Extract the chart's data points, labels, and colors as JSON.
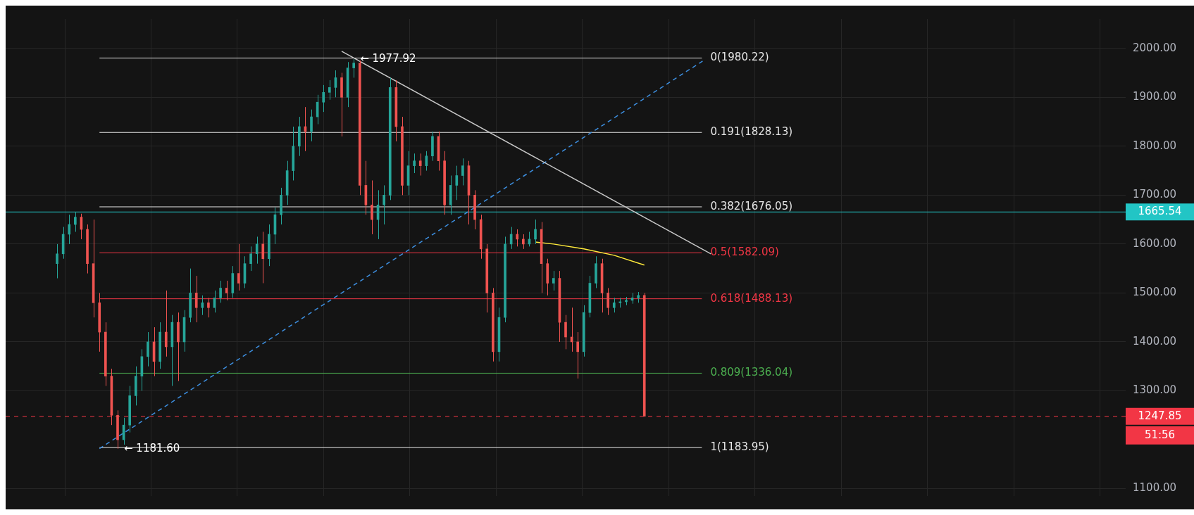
{
  "chart_data": {
    "type": "candlestick",
    "categories": [
      null,
      null,
      null,
      null,
      null,
      null,
      null,
      null,
      null,
      null,
      null,
      null,
      null,
      null,
      null,
      null,
      null,
      null,
      null,
      null,
      null,
      null,
      null,
      null,
      null,
      null,
      null,
      null,
      null,
      null,
      null,
      null,
      null,
      null,
      null,
      null,
      null,
      null,
      null,
      null,
      null,
      null,
      null,
      null,
      null,
      null,
      null,
      null,
      null,
      null,
      null,
      null,
      null,
      null,
      null,
      null,
      null,
      null,
      null,
      null,
      null,
      null,
      null,
      null,
      null,
      null,
      null,
      null,
      null,
      null,
      null,
      null,
      null,
      null,
      null,
      null,
      null,
      null,
      null,
      null,
      null,
      null,
      null,
      null,
      null,
      null,
      null,
      null,
      null,
      null,
      null,
      null,
      null,
      null,
      null,
      null,
      null,
      null,
      null,
      null,
      null,
      null,
      null,
      null,
      null,
      null,
      null,
      null,
      null,
      null,
      null,
      null,
      null,
      null,
      null,
      null,
      null,
      null,
      null,
      null,
      null,
      null,
      null,
      null,
      null,
      null,
      null,
      null,
      null,
      null,
      null,
      null,
      null,
      null,
      null,
      null,
      null,
      null,
      null,
      null,
      null,
      null,
      null,
      null,
      null,
      null,
      null,
      null,
      null,
      null,
      null,
      null,
      null,
      null,
      null,
      null,
      null,
      null,
      null,
      null,
      null,
      null,
      null,
      null,
      null,
      null,
      null,
      null,
      null,
      null,
      null,
      null,
      null,
      null,
      null,
      null,
      null,
      null,
      null,
      null,
      null,
      null,
      null,
      null,
      null
    ],
    "ohlc": [
      null,
      null,
      null,
      null,
      null,
      null,
      null,
      null,
      [
        1560,
        1600,
        1530,
        1580
      ],
      [
        1580,
        1635,
        1570,
        1620
      ],
      [
        1620,
        1660,
        1600,
        1640
      ],
      [
        1640,
        1665,
        1625,
        1655
      ],
      [
        1655,
        1662,
        1610,
        1630
      ],
      [
        1630,
        1640,
        1540,
        1560
      ],
      [
        1560,
        1650,
        1450,
        1480
      ],
      [
        1480,
        1500,
        1380,
        1420
      ],
      [
        1420,
        1440,
        1310,
        1330
      ],
      [
        1330,
        1345,
        1230,
        1250
      ],
      [
        1250,
        1260,
        1181.6,
        1200
      ],
      [
        1200,
        1245,
        1190,
        1230
      ],
      [
        1230,
        1310,
        1215,
        1290
      ],
      [
        1290,
        1350,
        1270,
        1330
      ],
      [
        1330,
        1385,
        1300,
        1370
      ],
      [
        1370,
        1420,
        1350,
        1400
      ],
      [
        1400,
        1430,
        1330,
        1360
      ],
      [
        1360,
        1440,
        1345,
        1420
      ],
      [
        1420,
        1505,
        1370,
        1390
      ],
      [
        1390,
        1455,
        1310,
        1440
      ],
      [
        1440,
        1460,
        1320,
        1400
      ],
      [
        1400,
        1465,
        1380,
        1450
      ],
      [
        1450,
        1550,
        1440,
        1500
      ],
      [
        1500,
        1535,
        1440,
        1470
      ],
      [
        1470,
        1495,
        1455,
        1480
      ],
      [
        1480,
        1490,
        1450,
        1470
      ],
      [
        1470,
        1505,
        1460,
        1490
      ],
      [
        1490,
        1525,
        1480,
        1510
      ],
      [
        1510,
        1525,
        1485,
        1500
      ],
      [
        1500,
        1555,
        1490,
        1540
      ],
      [
        1540,
        1600,
        1505,
        1520
      ],
      [
        1520,
        1575,
        1510,
        1560
      ],
      [
        1560,
        1595,
        1545,
        1580
      ],
      [
        1580,
        1615,
        1560,
        1600
      ],
      [
        1600,
        1625,
        1520,
        1570
      ],
      [
        1570,
        1640,
        1555,
        1620
      ],
      [
        1620,
        1675,
        1600,
        1660
      ],
      [
        1660,
        1715,
        1640,
        1700
      ],
      [
        1700,
        1770,
        1680,
        1750
      ],
      [
        1750,
        1840,
        1730,
        1800
      ],
      [
        1800,
        1860,
        1780,
        1840
      ],
      [
        1840,
        1880,
        1790,
        1830
      ],
      [
        1830,
        1875,
        1810,
        1860
      ],
      [
        1860,
        1905,
        1845,
        1890
      ],
      [
        1890,
        1925,
        1870,
        1910
      ],
      [
        1910,
        1935,
        1895,
        1920
      ],
      [
        1920,
        1955,
        1900,
        1940
      ],
      [
        1940,
        1950,
        1820,
        1900
      ],
      [
        1900,
        1972,
        1880,
        1960
      ],
      [
        1960,
        1977.92,
        1940,
        1970
      ],
      [
        1970,
        1975,
        1700,
        1720
      ],
      [
        1720,
        1770,
        1660,
        1680
      ],
      [
        1680,
        1730,
        1620,
        1650
      ],
      [
        1650,
        1710,
        1610,
        1680
      ],
      [
        1680,
        1720,
        1640,
        1700
      ],
      [
        1700,
        1940,
        1690,
        1920
      ],
      [
        1920,
        1935,
        1810,
        1840
      ],
      [
        1840,
        1860,
        1700,
        1720
      ],
      [
        1720,
        1790,
        1700,
        1760
      ],
      [
        1760,
        1785,
        1745,
        1770
      ],
      [
        1770,
        1785,
        1740,
        1760
      ],
      [
        1760,
        1790,
        1750,
        1780
      ],
      [
        1780,
        1830,
        1770,
        1820
      ],
      [
        1820,
        1830,
        1750,
        1770
      ],
      [
        1770,
        1790,
        1660,
        1680
      ],
      [
        1680,
        1740,
        1660,
        1720
      ],
      [
        1720,
        1760,
        1690,
        1740
      ],
      [
        1740,
        1775,
        1720,
        1760
      ],
      [
        1760,
        1770,
        1640,
        1700
      ],
      [
        1700,
        1710,
        1630,
        1650
      ],
      [
        1650,
        1660,
        1570,
        1590
      ],
      [
        1590,
        1600,
        1460,
        1500
      ],
      [
        1500,
        1510,
        1360,
        1380
      ],
      [
        1380,
        1470,
        1360,
        1450
      ],
      [
        1450,
        1615,
        1440,
        1600
      ],
      [
        1600,
        1635,
        1590,
        1620
      ],
      [
        1620,
        1630,
        1595,
        1610
      ],
      [
        1610,
        1620,
        1590,
        1600
      ],
      [
        1600,
        1625,
        1595,
        1610
      ],
      [
        1610,
        1650,
        1600,
        1630
      ],
      [
        1630,
        1645,
        1500,
        1560
      ],
      [
        1560,
        1570,
        1495,
        1520
      ],
      [
        1520,
        1545,
        1505,
        1530
      ],
      [
        1530,
        1545,
        1400,
        1440
      ],
      [
        1440,
        1455,
        1385,
        1410
      ],
      [
        1410,
        1470,
        1380,
        1400
      ],
      [
        1400,
        1420,
        1325,
        1380
      ],
      [
        1380,
        1475,
        1370,
        1460
      ],
      [
        1460,
        1535,
        1450,
        1520
      ],
      [
        1520,
        1575,
        1510,
        1560
      ],
      [
        1560,
        1570,
        1460,
        1500
      ],
      [
        1500,
        1510,
        1455,
        1470
      ],
      [
        1470,
        1490,
        1460,
        1480
      ],
      [
        1480,
        1490,
        1470,
        1482
      ],
      [
        1482,
        1492,
        1475,
        1485
      ],
      [
        1485,
        1500,
        1478,
        1490
      ],
      [
        1490,
        1502,
        1480,
        1495
      ],
      [
        1495,
        1500,
        1247.85,
        1247.85
      ],
      null,
      null,
      null,
      null,
      null,
      null,
      null,
      null,
      null,
      null,
      null,
      null,
      null,
      null,
      null,
      null,
      null,
      null,
      null,
      null,
      null,
      null,
      null,
      null,
      null,
      null,
      null,
      null,
      null,
      null,
      null,
      null,
      null,
      null,
      null,
      null,
      null,
      null,
      null,
      null,
      null,
      null,
      null,
      null,
      null,
      null,
      null,
      null,
      null,
      null,
      null,
      null,
      null,
      null,
      null,
      null,
      null,
      null,
      null,
      null,
      null,
      null,
      null,
      null,
      null,
      null,
      null,
      null,
      null,
      null,
      null,
      null,
      null,
      null,
      null,
      null,
      null,
      null,
      null
    ],
    "colors": [
      null,
      null,
      null,
      null,
      null,
      null,
      null,
      null,
      "#26a69a",
      "#26a69a",
      "#26a69a",
      "#26a69a",
      "#ef5350",
      "#ef5350",
      "#ef5350",
      "#ef5350",
      "#ef5350",
      "#ef5350",
      "#ef5350",
      "#26a69a",
      "#26a69a",
      "#26a69a",
      "#26a69a",
      "#26a69a",
      "#ef5350",
      "#26a69a",
      "#ef5350",
      "#26a69a",
      "#ef5350",
      "#26a69a",
      "#26a69a",
      "#ef5350",
      "#26a69a",
      "#ef5350",
      "#26a69a",
      "#26a69a",
      "#ef5350",
      "#26a69a",
      "#ef5350",
      "#26a69a",
      "#26a69a",
      "#26a69a",
      "#ef5350",
      "#26a69a",
      "#26a69a",
      "#26a69a",
      "#26a69a",
      "#26a69a",
      "#26a69a",
      "#ef5350",
      "#26a69a",
      "#26a69a",
      "#26a69a",
      "#26a69a",
      "#26a69a",
      "#ef5350",
      "#26a69a",
      "#26a69a",
      "#ef5350",
      "#ef5350",
      "#ef5350",
      "#26a69a",
      "#26a69a",
      "#26a69a",
      "#ef5350",
      "#ef5350",
      "#26a69a",
      "#26a69a",
      "#ef5350",
      "#26a69a",
      "#26a69a",
      "#ef5350",
      "#ef5350",
      "#26a69a",
      "#26a69a",
      "#26a69a",
      "#ef5350",
      "#ef5350",
      "#ef5350",
      "#ef5350",
      "#ef5350",
      "#26a69a",
      "#26a69a",
      "#26a69a",
      "#ef5350",
      "#ef5350",
      "#26a69a",
      "#26a69a",
      "#ef5350",
      "#ef5350",
      "#26a69a",
      "#ef5350",
      "#ef5350",
      "#ef5350",
      "#ef5350",
      "#26a69a",
      "#26a69a",
      "#26a69a",
      "#ef5350",
      "#ef5350",
      "#26a69a",
      "#26a69a",
      "#26a69a",
      "#26a69a",
      "#26a69a",
      "#ef5350",
      null,
      null,
      null,
      null,
      null,
      null,
      null,
      null,
      null,
      null,
      null,
      null,
      null,
      null,
      null,
      null,
      null,
      null,
      null,
      null,
      null,
      null,
      null,
      null,
      null,
      null,
      null,
      null,
      null,
      null,
      null,
      null,
      null,
      null,
      null,
      null,
      null,
      null,
      null,
      null,
      null,
      null,
      null,
      null,
      null,
      null,
      null,
      null,
      null,
      null,
      null,
      null,
      null,
      null,
      null,
      null,
      null,
      null,
      null,
      null,
      null,
      null,
      null,
      null,
      null,
      null,
      null,
      null,
      null,
      null,
      null,
      null,
      null,
      null,
      null,
      null,
      null,
      null,
      null
    ],
    "series": [
      {
        "type": "line",
        "color": "#c8c8c8",
        "values": [
          null,
          null,
          null,
          null,
          null,
          null,
          null,
          null,
          null,
          null,
          null,
          null,
          null,
          null,
          null,
          null,
          null,
          null,
          null,
          null,
          null,
          null,
          null,
          null,
          null,
          null,
          null,
          null,
          null,
          null,
          null,
          null,
          null,
          null,
          null,
          null,
          null,
          null,
          null,
          null,
          null,
          null,
          null,
          null,
          null,
          null,
          null,
          null,
          null,
          null,
          null,
          null,
          null,
          null,
          null,
          1994,
          null,
          null,
          null,
          null,
          null,
          null,
          null,
          null,
          null,
          null,
          null,
          null,
          null,
          null,
          null,
          null,
          null,
          null,
          null,
          null,
          null,
          null,
          null,
          null,
          null,
          null,
          null,
          null,
          null,
          null,
          null,
          null,
          null,
          null,
          null,
          null,
          null,
          null,
          null,
          null,
          null,
          null,
          null,
          null,
          null,
          null,
          null,
          null,
          null,
          null,
          null,
          null,
          null,
          null,
          null,
          null,
          null,
          null,
          null,
          null,
          1580,
          null,
          null,
          null,
          null,
          null,
          null,
          null,
          null,
          null,
          null,
          null,
          null,
          null,
          null,
          null,
          null,
          null,
          null,
          null,
          null,
          null,
          null,
          null,
          null,
          null,
          null,
          null,
          null,
          null,
          null,
          null,
          null,
          null,
          null,
          null,
          null,
          null,
          null,
          null,
          null,
          null,
          null,
          null,
          null,
          null,
          null,
          null,
          null,
          null,
          null,
          null,
          null,
          null,
          null,
          null,
          null,
          null,
          null,
          null,
          null,
          null,
          null,
          null,
          null,
          null,
          null,
          null,
          null
        ]
      },
      {
        "type": "line",
        "color": "#3d8fe0",
        "line_style": "dashed",
        "values": [
          null,
          null,
          null,
          null,
          null,
          null,
          null,
          null,
          null,
          null,
          null,
          null,
          null,
          null,
          null,
          1182,
          null,
          null,
          null,
          null,
          null,
          null,
          null,
          null,
          null,
          null,
          null,
          null,
          null,
          null,
          null,
          null,
          null,
          null,
          null,
          null,
          null,
          null,
          null,
          null,
          null,
          null,
          null,
          null,
          null,
          null,
          null,
          null,
          null,
          null,
          null,
          null,
          null,
          null,
          null,
          null,
          null,
          null,
          null,
          null,
          null,
          null,
          null,
          null,
          null,
          null,
          null,
          null,
          null,
          null,
          null,
          null,
          null,
          null,
          null,
          null,
          null,
          null,
          null,
          null,
          null,
          null,
          null,
          null,
          null,
          null,
          null,
          null,
          null,
          null,
          null,
          null,
          null,
          null,
          null,
          null,
          null,
          null,
          null,
          null,
          null,
          null,
          null,
          null,
          null,
          null,
          null,
          null,
          null,
          null,
          null,
          null,
          null,
          null,
          null,
          1977,
          null,
          null,
          null,
          null,
          null,
          null,
          null,
          null,
          null,
          null,
          null,
          null,
          null,
          null,
          null,
          null,
          null,
          null,
          null,
          null,
          null,
          null,
          null,
          null,
          null,
          null,
          null,
          null,
          null,
          null,
          null,
          null,
          null,
          null,
          null,
          null,
          null,
          null,
          null,
          null,
          null,
          null,
          null,
          null,
          null,
          null,
          null,
          null,
          null,
          null,
          null,
          null,
          null,
          null,
          null,
          null,
          null,
          null,
          null,
          null,
          null,
          null,
          null,
          null,
          null,
          null,
          null,
          null,
          null
        ]
      },
      {
        "type": "line",
        "color": "#ffeb3b",
        "values": [
          null,
          null,
          null,
          null,
          null,
          null,
          null,
          null,
          null,
          null,
          null,
          null,
          null,
          null,
          null,
          null,
          null,
          null,
          null,
          null,
          null,
          null,
          null,
          null,
          null,
          null,
          null,
          null,
          null,
          null,
          null,
          null,
          null,
          null,
          null,
          null,
          null,
          null,
          null,
          null,
          null,
          null,
          null,
          null,
          null,
          null,
          null,
          null,
          null,
          null,
          null,
          null,
          null,
          null,
          null,
          null,
          null,
          null,
          null,
          null,
          null,
          null,
          null,
          null,
          null,
          null,
          null,
          null,
          null,
          null,
          null,
          null,
          null,
          null,
          null,
          null,
          null,
          null,
          null,
          null,
          null,
          null,
          null,
          null,
          null,
          null,
          null,
          1604,
          null,
          null,
          1600,
          null,
          null,
          null,
          null,
          1590,
          null,
          null,
          null,
          null,
          1577,
          null,
          null,
          null,
          null,
          1557,
          null,
          null,
          null,
          null,
          null,
          null,
          null,
          null,
          null,
          null,
          null,
          null,
          null,
          null,
          null,
          null,
          null,
          null,
          null,
          null,
          null,
          null,
          null,
          null,
          null,
          null,
          null,
          null,
          null,
          null,
          null,
          null,
          null,
          null,
          null,
          null,
          null,
          null,
          null,
          null,
          null,
          null,
          null,
          null,
          null,
          null,
          null,
          null,
          null,
          null,
          null,
          null,
          null,
          null,
          null,
          null,
          null,
          null,
          null,
          null,
          null,
          null,
          null,
          null,
          null,
          null,
          null,
          null,
          null,
          null,
          null,
          null,
          null,
          null,
          null,
          null,
          null,
          null,
          null
        ]
      }
    ],
    "marker": "none",
    "ylim": [
      1085,
      2060
    ],
    "yticks": [
      {
        "value": 1100,
        "label": "1100.00"
      },
      {
        "value": 1300,
        "label": "1300.00"
      },
      {
        "value": 1400,
        "label": "1400.00"
      },
      {
        "value": 1500,
        "label": "1500.00"
      },
      {
        "value": 1600,
        "label": "1600.00"
      },
      {
        "value": 1700,
        "label": "1700.00"
      },
      {
        "value": 1800,
        "label": "1800.00"
      },
      {
        "value": 1900,
        "label": "1900.00"
      },
      {
        "value": 2000,
        "label": "2000.00"
      }
    ],
    "tick_labels": "y",
    "grid": true,
    "legend": false,
    "ref_lines": [
      {
        "axis": "y",
        "value": 1980.22,
        "label": "0(1980.22)",
        "color": "#e6e6e6"
      },
      {
        "axis": "y",
        "value": 1828.13,
        "label": "0.191(1828.13)",
        "color": "#e6e6e6"
      },
      {
        "axis": "y",
        "value": 1676.05,
        "label": "0.382(1676.05)",
        "color": "#e6e6e6"
      },
      {
        "axis": "y",
        "value": 1582.09,
        "label": "0.5(1582.09)",
        "color": "#f23645"
      },
      {
        "axis": "y",
        "value": 1488.13,
        "label": "0.618(1488.13)",
        "color": "#f23645"
      },
      {
        "axis": "y",
        "value": 1336.04,
        "label": "0.809(1336.04)",
        "color": "#4caf50"
      },
      {
        "axis": "y",
        "value": 1183.95,
        "label": "1(1183.95)",
        "color": "#e6e6e6"
      },
      {
        "axis": "y",
        "value": 1665.54,
        "label": "1665.54",
        "color": "#22c5c5"
      },
      {
        "axis": "y",
        "value": 1247.85,
        "label": "1247.85",
        "color": "#f23645",
        "line_style": "dashed"
      }
    ],
    "annotations": [
      {
        "text": "← 1977.92",
        "y": 1977.92
      },
      {
        "text": "← 1181.60",
        "y": 1181.6
      },
      "51:56"
    ]
  }
}
